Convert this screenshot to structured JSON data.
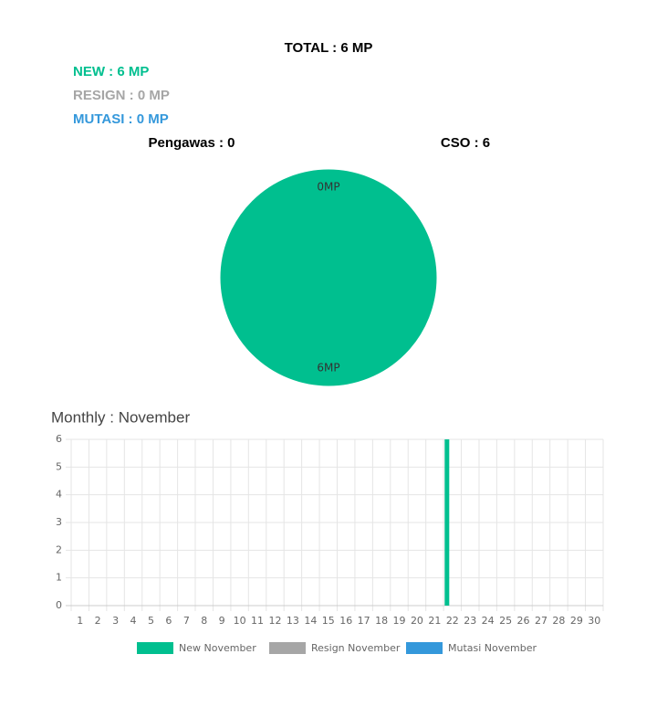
{
  "header": {
    "total": "TOTAL : 6 MP",
    "new": "NEW : 6 MP",
    "resign": "RESIGN : 0 MP",
    "mutasi": "MUTASI : 0 MP",
    "pengawas": "Pengawas : 0",
    "cso": "CSO : 6"
  },
  "chart_data": [
    {
      "type": "pie",
      "values": [
        0,
        6
      ],
      "value_labels": [
        "0MP",
        "6MP"
      ],
      "colors": [
        "#3498db",
        "#00bf8f"
      ]
    },
    {
      "type": "bar",
      "title": "Monthly : November",
      "categories": [
        "1",
        "2",
        "3",
        "4",
        "5",
        "6",
        "7",
        "8",
        "9",
        "10",
        "11",
        "12",
        "13",
        "14",
        "15",
        "16",
        "17",
        "18",
        "19",
        "20",
        "21",
        "22",
        "23",
        "24",
        "25",
        "26",
        "27",
        "28",
        "29",
        "30"
      ],
      "series": [
        {
          "name": "New November",
          "color": "#00bf8f",
          "values": [
            0,
            0,
            0,
            0,
            0,
            0,
            0,
            0,
            0,
            0,
            0,
            0,
            0,
            0,
            0,
            0,
            0,
            0,
            0,
            0,
            0,
            6,
            0,
            0,
            0,
            0,
            0,
            0,
            0,
            0
          ]
        },
        {
          "name": "Resign November",
          "color": "#a6a6a6",
          "values": [
            0,
            0,
            0,
            0,
            0,
            0,
            0,
            0,
            0,
            0,
            0,
            0,
            0,
            0,
            0,
            0,
            0,
            0,
            0,
            0,
            0,
            0,
            0,
            0,
            0,
            0,
            0,
            0,
            0,
            0
          ]
        },
        {
          "name": "Mutasi November",
          "color": "#3498db",
          "values": [
            0,
            0,
            0,
            0,
            0,
            0,
            0,
            0,
            0,
            0,
            0,
            0,
            0,
            0,
            0,
            0,
            0,
            0,
            0,
            0,
            0,
            0,
            0,
            0,
            0,
            0,
            0,
            0,
            0,
            0
          ]
        }
      ],
      "ylim": [
        0,
        6
      ],
      "yticks": [
        0,
        1,
        2,
        3,
        4,
        5,
        6
      ],
      "grid": true
    }
  ]
}
